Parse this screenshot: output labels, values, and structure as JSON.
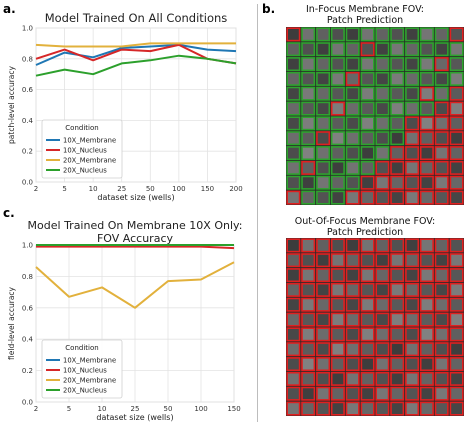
{
  "panels": {
    "a": "a.",
    "b": "b.",
    "c": "c."
  },
  "chart_data": [
    {
      "type": "line",
      "title": "Model Trained On All Conditions",
      "xlabel": "dataset size (wells)",
      "ylabel": "patch-level accuracy",
      "categories": [
        "2",
        "5",
        "10",
        "25",
        "50",
        "100",
        "150",
        "200"
      ],
      "ylim": [
        0.0,
        1.0
      ],
      "yticks": [
        "0.0",
        "0.2",
        "0.4",
        "0.6",
        "0.8",
        "1.0"
      ],
      "grid": true,
      "legend": {
        "title": "Condition",
        "placement": "lower-left"
      },
      "series": [
        {
          "name": "10X_Membrane",
          "color": "#1f77b4",
          "values": [
            0.76,
            0.84,
            0.81,
            0.87,
            0.88,
            0.89,
            0.86,
            0.85
          ]
        },
        {
          "name": "10X_Nucleus",
          "color": "#d62728",
          "values": [
            0.8,
            0.86,
            0.79,
            0.86,
            0.85,
            0.89,
            0.8,
            0.77
          ]
        },
        {
          "name": "20X_Membrane",
          "color": "#e2b13c",
          "values": [
            0.89,
            0.88,
            0.88,
            0.88,
            0.9,
            0.9,
            0.9,
            0.9
          ]
        },
        {
          "name": "20X_Nucleus",
          "color": "#2ca02c",
          "values": [
            0.69,
            0.73,
            0.7,
            0.77,
            0.79,
            0.82,
            0.8,
            0.77
          ]
        }
      ]
    },
    {
      "type": "line",
      "title": "Model Trained On Membrane 10X Only:\nFOV Accuracy",
      "xlabel": "dataset size (wells)",
      "ylabel": "field-level accuracy",
      "categories": [
        "2",
        "5",
        "10",
        "25",
        "50",
        "100",
        "150"
      ],
      "ylim": [
        0.0,
        1.0
      ],
      "yticks": [
        "0.0",
        "0.2",
        "0.4",
        "0.6",
        "0.8",
        "1.0"
      ],
      "grid": true,
      "legend": {
        "title": "Condition",
        "placement": "lower-left"
      },
      "series": [
        {
          "name": "10X_Membrane",
          "color": "#1f77b4",
          "values": [
            1.0,
            1.0,
            1.0,
            1.0,
            1.0,
            1.0,
            1.0
          ]
        },
        {
          "name": "10X_Nucleus",
          "color": "#d62728",
          "values": [
            0.99,
            0.99,
            0.99,
            0.99,
            0.99,
            0.99,
            0.98
          ]
        },
        {
          "name": "20X_Membrane",
          "color": "#e2b13c",
          "values": [
            0.86,
            0.67,
            0.73,
            0.6,
            0.77,
            0.78,
            0.89
          ]
        },
        {
          "name": "20X_Nucleus",
          "color": "#2ca02c",
          "values": [
            1.0,
            1.0,
            1.0,
            1.0,
            1.0,
            1.0,
            1.0
          ]
        }
      ]
    }
  ],
  "micrographs": [
    {
      "title_line1": "In-Focus Membrane FOV:",
      "title_line2": "Patch Prediction",
      "rows": 12,
      "cols": 12
    },
    {
      "title_line1": "Out-Of-Focus Membrane FOV:",
      "title_line2": "Patch Prediction",
      "rows": 12,
      "cols": 12
    }
  ]
}
